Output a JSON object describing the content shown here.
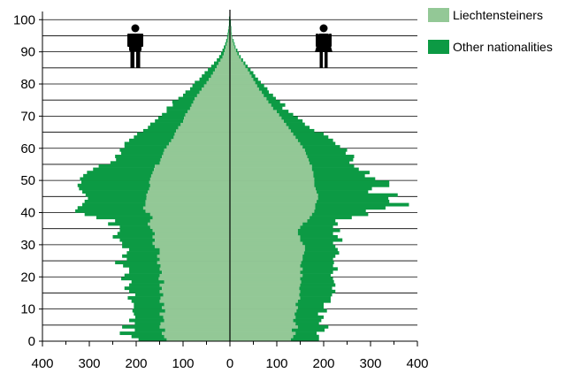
{
  "colors": {
    "series1": "#93c896",
    "series2": "#0c9a44",
    "axis": "#000000",
    "grid": "#000000",
    "icon": "#000000"
  },
  "icons": {
    "left": "male-icon",
    "right": "female-icon"
  },
  "chart_data": {
    "type": "bar",
    "orientation": "horizontal-population-pyramid",
    "ylabel": "",
    "xlabel": "",
    "y_ticks": [
      0,
      10,
      20,
      30,
      40,
      50,
      60,
      70,
      80,
      90,
      100
    ],
    "x_ticks": [
      -400,
      -300,
      -200,
      -100,
      0,
      100,
      200,
      300,
      400
    ],
    "x_tick_labels": [
      "400",
      "300",
      "200",
      "100",
      "0",
      "100",
      "200",
      "300",
      "400"
    ],
    "xlim": [
      -400,
      400
    ],
    "ylim": [
      0,
      102
    ],
    "grid": "horizontal",
    "legend_position": "top-right",
    "series": [
      {
        "name": "Liechtensteiners",
        "key": "liechtensteiners"
      },
      {
        "name": "Other nationalities",
        "key": "other"
      }
    ],
    "ages": [
      0,
      1,
      2,
      3,
      4,
      5,
      6,
      7,
      8,
      9,
      10,
      11,
      12,
      13,
      14,
      15,
      16,
      17,
      18,
      19,
      20,
      21,
      22,
      23,
      24,
      25,
      26,
      27,
      28,
      29,
      30,
      31,
      32,
      33,
      34,
      35,
      36,
      37,
      38,
      39,
      40,
      41,
      42,
      43,
      44,
      45,
      46,
      47,
      48,
      49,
      50,
      51,
      52,
      53,
      54,
      55,
      56,
      57,
      58,
      59,
      60,
      61,
      62,
      63,
      64,
      65,
      66,
      67,
      68,
      69,
      70,
      71,
      72,
      73,
      74,
      75,
      76,
      77,
      78,
      79,
      80,
      81,
      82,
      83,
      84,
      85,
      86,
      87,
      88,
      89,
      90,
      91,
      92,
      93,
      94,
      95,
      96,
      97,
      98,
      99,
      100
    ],
    "male_liechtensteiners": [
      135,
      140,
      145,
      138,
      150,
      148,
      140,
      142,
      150,
      138,
      145,
      140,
      150,
      148,
      142,
      150,
      145,
      150,
      140,
      152,
      150,
      145,
      150,
      148,
      155,
      150,
      155,
      150,
      150,
      160,
      165,
      160,
      165,
      160,
      165,
      170,
      175,
      170,
      165,
      170,
      180,
      185,
      180,
      180,
      178,
      178,
      175,
      172,
      170,
      172,
      170,
      168,
      165,
      162,
      160,
      150,
      148,
      145,
      142,
      140,
      135,
      130,
      125,
      120,
      118,
      115,
      110,
      105,
      100,
      98,
      95,
      90,
      85,
      82,
      78,
      75,
      70,
      65,
      60,
      55,
      50,
      45,
      40,
      36,
      32,
      28,
      24,
      20,
      16,
      13,
      11,
      9,
      7,
      5,
      4,
      3,
      2,
      2,
      1,
      1,
      1
    ],
    "male_other": [
      60,
      70,
      90,
      65,
      80,
      55,
      75,
      60,
      55,
      70,
      60,
      65,
      60,
      70,
      60,
      65,
      80,
      65,
      70,
      80,
      75,
      70,
      65,
      80,
      90,
      70,
      75,
      70,
      65,
      70,
      65,
      75,
      85,
      80,
      70,
      65,
      85,
      75,
      120,
      140,
      150,
      140,
      135,
      130,
      125,
      130,
      140,
      150,
      155,
      145,
      150,
      145,
      140,
      130,
      120,
      105,
      95,
      100,
      90,
      95,
      90,
      95,
      90,
      85,
      80,
      70,
      65,
      65,
      60,
      55,
      50,
      45,
      50,
      40,
      45,
      35,
      30,
      30,
      25,
      25,
      25,
      20,
      20,
      18,
      15,
      12,
      10,
      8,
      7,
      6,
      5,
      4,
      3,
      3,
      2,
      2,
      2,
      1,
      1,
      1,
      1
    ],
    "female_liechtensteiners": [
      130,
      135,
      140,
      132,
      145,
      140,
      135,
      140,
      138,
      142,
      145,
      140,
      145,
      150,
      148,
      150,
      148,
      150,
      152,
      150,
      155,
      150,
      155,
      150,
      152,
      155,
      155,
      158,
      160,
      160,
      155,
      150,
      150,
      145,
      145,
      150,
      155,
      165,
      170,
      175,
      180,
      182,
      182,
      185,
      188,
      188,
      185,
      183,
      180,
      180,
      180,
      178,
      178,
      175,
      175,
      170,
      168,
      165,
      162,
      160,
      155,
      150,
      145,
      140,
      135,
      130,
      125,
      120,
      115,
      110,
      105,
      100,
      92,
      88,
      82,
      78,
      72,
      68,
      62,
      58,
      54,
      50,
      46,
      42,
      38,
      33,
      29,
      24,
      20,
      16,
      13,
      10,
      8,
      6,
      4,
      3,
      2,
      2,
      1,
      1,
      1
    ],
    "female_other": [
      60,
      55,
      45,
      70,
      65,
      50,
      60,
      60,
      50,
      65,
      55,
      60,
      70,
      65,
      70,
      75,
      70,
      75,
      70,
      70,
      60,
      70,
      75,
      70,
      70,
      65,
      70,
      75,
      70,
      65,
      65,
      90,
      80,
      75,
      90,
      70,
      75,
      60,
      90,
      120,
      110,
      150,
      200,
      155,
      150,
      170,
      110,
      120,
      160,
      160,
      130,
      110,
      120,
      100,
      90,
      85,
      95,
      100,
      85,
      90,
      80,
      75,
      75,
      70,
      65,
      50,
      45,
      40,
      40,
      35,
      30,
      25,
      20,
      30,
      25,
      20,
      20,
      15,
      18,
      15,
      12,
      10,
      8,
      8,
      6,
      5,
      4,
      4,
      3,
      3,
      3,
      2,
      2,
      2,
      1,
      1,
      1,
      1,
      1,
      1,
      0
    ]
  },
  "legend": {
    "items": [
      {
        "label": "Liechtensteiners"
      },
      {
        "label": "Other nationalities"
      }
    ]
  }
}
